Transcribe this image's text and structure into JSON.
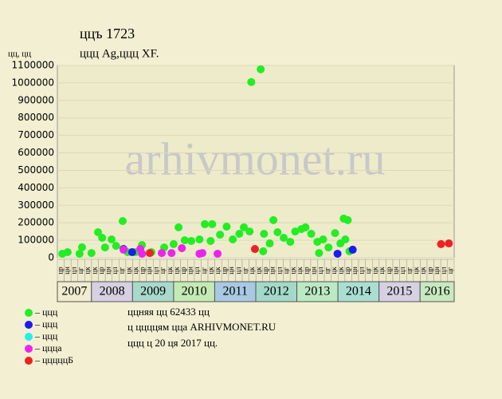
{
  "chart_data": {
    "type": "scatter",
    "title": "ццъ 1723",
    "subtitle": "ццц Ag,ццц XF.",
    "y_label": "цц, цц",
    "watermark": "arhivmonet.ru",
    "xlim": [
      2007.17,
      2016.83
    ],
    "ylim": [
      0,
      1100000
    ],
    "yticks": [
      0,
      100000,
      200000,
      300000,
      400000,
      500000,
      600000,
      700000,
      800000,
      900000,
      1000000,
      1100000
    ],
    "grid": true,
    "years": [
      2007,
      2008,
      2009,
      2010,
      2011,
      2012,
      2013,
      2014,
      2015,
      2016
    ],
    "year_colors": [
      "#f0ecd0",
      "#d6d0e2",
      "#a9d9cb",
      "#c4eab4",
      "#a9c9e2",
      "#a3d9c8",
      "#bbe9c3",
      "#a9dfd1",
      "#d6d0e2",
      "#c8e9c0"
    ],
    "x_month_labels": [
      "цр",
      "цн",
      "цл",
      "цг",
      "цк",
      "цк",
      "цр",
      "цн",
      "цл",
      "цг",
      "цк",
      "цк",
      "цр",
      "цн",
      "цл",
      "цг",
      "цк",
      "цк",
      "цр",
      "цн",
      "цл",
      "цг",
      "цк",
      "цк",
      "цр",
      "цн",
      "цл",
      "цг",
      "цк",
      "цк",
      "цр",
      "цн",
      "цл",
      "цг",
      "цк",
      "цк",
      "цр",
      "цн",
      "цл",
      "цг",
      "цк",
      "цк",
      "цр",
      "цн",
      "цл",
      "цг",
      "цк",
      "цк",
      "цр",
      "цн",
      "цл",
      "цг",
      "цк",
      "цк",
      "цр",
      "цн",
      "цл",
      "цг"
    ],
    "series": [
      {
        "name": "– ццц",
        "color": "#22ee22",
        "x": [
          2007.29,
          2007.42,
          2007.77,
          2007.71,
          2008.0,
          2008.16,
          2008.26,
          2008.33,
          2008.49,
          2008.6,
          2008.76,
          2008.88,
          2009.07,
          2009.23,
          2009.46,
          2009.77,
          2010.0,
          2010.12,
          2010.27,
          2010.43,
          2010.63,
          2010.63,
          2010.76,
          2010.94,
          2010.9,
          2011.13,
          2011.29,
          2011.44,
          2011.6,
          2011.71,
          2011.89,
          2011.85,
          2012.12,
          2012.18,
          2012.2,
          2012.34,
          2012.43,
          2012.53,
          2012.68,
          2012.84,
          2012.96,
          2013.11,
          2013.21,
          2013.35,
          2013.5,
          2013.54,
          2013.64,
          2013.77,
          2013.93,
          2014.06,
          2014.14,
          2014.24,
          2014.18,
          2014.28
        ],
        "values": [
          23000,
          32000,
          60000,
          23000,
          27000,
          146000,
          114000,
          59000,
          105000,
          68000,
          210000,
          32000,
          32000,
          73000,
          32000,
          59000,
          78000,
          174000,
          100000,
          96000,
          105000,
          23000,
          192000,
          192000,
          96000,
          132000,
          178000,
          105000,
          137000,
          174000,
          1005000,
          150000,
          1078000,
          37000,
          137000,
          82000,
          215000,
          146000,
          114000,
          91000,
          150000,
          164000,
          174000,
          137000,
          91000,
          27000,
          105000,
          59000,
          141000,
          82000,
          224000,
          215000,
          105000,
          37000
        ]
      },
      {
        "name": "– ццц",
        "color": "#1c1cf0",
        "x": [
          2008.78,
          2008.99,
          2013.99,
          2014.36
        ],
        "values": [
          50000,
          32000,
          23000,
          46000
        ]
      },
      {
        "name": "– ццц",
        "color": "#22eeee",
        "x": [],
        "values": []
      },
      {
        "name": "– ццца",
        "color": "#ee22ee",
        "x": [
          2008.78,
          2009.19,
          2009.23,
          2009.71,
          2009.95,
          2010.2,
          2010.63,
          2010.7,
          2011.07
        ],
        "values": [
          46000,
          50000,
          23000,
          27000,
          27000,
          55000,
          23000,
          27000,
          23000
        ]
      },
      {
        "name": "– цццццБ",
        "color": "#ee2222",
        "x": [
          2009.42,
          2011.98,
          2016.51,
          2016.7
        ],
        "values": [
          27000,
          50000,
          78000,
          82000
        ]
      }
    ],
    "notes": [
      "ццняя цц 62433 цц",
      "ц ццццям цца ARHIVMONET.RU",
      "ццц ц 20 ця 2017 цц."
    ]
  }
}
